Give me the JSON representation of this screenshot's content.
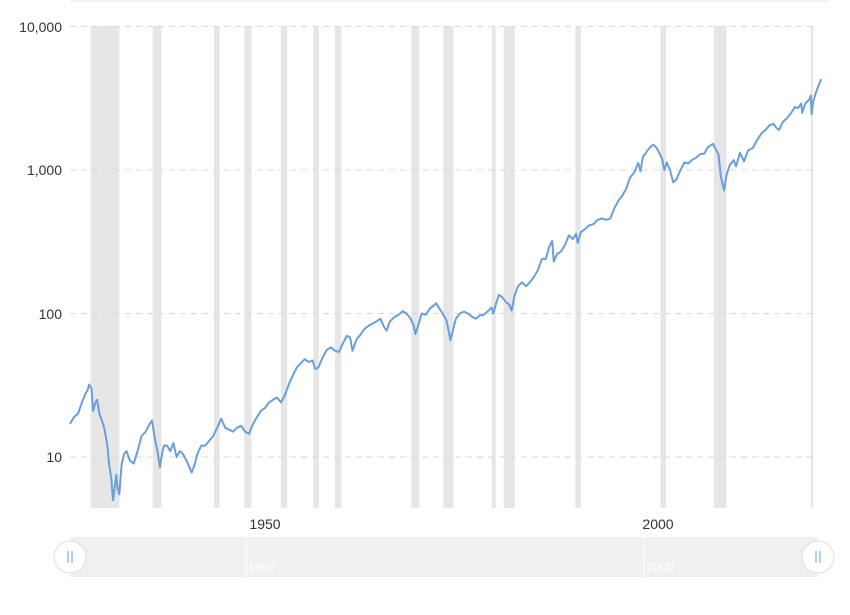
{
  "colors": {
    "line": "#6a9fd8",
    "recession_band": "#e6e6e6",
    "grid": "#d9d9d9",
    "navigator_bg": "#f0f0f0",
    "handle": "#ffffff"
  },
  "chart_data": {
    "type": "line",
    "title": "",
    "xlabel": "",
    "ylabel": "",
    "scale": "log",
    "grid": true,
    "xlim": [
      1927,
      2021
    ],
    "ylim": [
      5,
      10000
    ],
    "y_ticks": [
      {
        "value": 10,
        "label": "10"
      },
      {
        "value": 100,
        "label": "100"
      },
      {
        "value": 1000,
        "label": "1,000"
      },
      {
        "value": 10000,
        "label": "10,000"
      }
    ],
    "x_ticks": [
      {
        "value": 1950,
        "label": "1950"
      },
      {
        "value": 2000,
        "label": "2000"
      }
    ],
    "recessions": [
      [
        1929.6,
        1933.2
      ],
      [
        1937.4,
        1938.5
      ],
      [
        1945.1,
        1945.8
      ],
      [
        1948.9,
        1949.8
      ],
      [
        1953.5,
        1954.3
      ],
      [
        1957.6,
        1958.3
      ],
      [
        1960.3,
        1961.1
      ],
      [
        1969.9,
        1970.9
      ],
      [
        1973.9,
        1975.2
      ],
      [
        1980.0,
        1980.5
      ],
      [
        1981.5,
        1982.9
      ],
      [
        1990.5,
        1991.2
      ],
      [
        2001.2,
        2001.9
      ],
      [
        2007.9,
        2009.5
      ],
      [
        2020.1,
        2020.4
      ]
    ],
    "series": [
      {
        "values": [
          [
            1927.0,
            17
          ],
          [
            1927.5,
            19
          ],
          [
            1928.0,
            20
          ],
          [
            1928.5,
            24
          ],
          [
            1929.0,
            28
          ],
          [
            1929.2,
            29
          ],
          [
            1929.4,
            32
          ],
          [
            1929.7,
            30
          ],
          [
            1929.9,
            21
          ],
          [
            1930.2,
            24
          ],
          [
            1930.4,
            25
          ],
          [
            1930.7,
            20
          ],
          [
            1931.0,
            18
          ],
          [
            1931.3,
            16
          ],
          [
            1931.7,
            12
          ],
          [
            1931.9,
            9
          ],
          [
            1932.2,
            7
          ],
          [
            1932.4,
            5
          ],
          [
            1932.6,
            6
          ],
          [
            1932.8,
            7.5
          ],
          [
            1933.0,
            6
          ],
          [
            1933.2,
            5.5
          ],
          [
            1933.5,
            9
          ],
          [
            1933.8,
            10.5
          ],
          [
            1934.1,
            11
          ],
          [
            1934.5,
            9.5
          ],
          [
            1935.0,
            9
          ],
          [
            1935.5,
            11
          ],
          [
            1936.0,
            14
          ],
          [
            1936.5,
            15
          ],
          [
            1937.0,
            17
          ],
          [
            1937.3,
            18
          ],
          [
            1937.7,
            13
          ],
          [
            1938.0,
            11
          ],
          [
            1938.3,
            8.5
          ],
          [
            1938.5,
            10
          ],
          [
            1938.8,
            12
          ],
          [
            1939.2,
            12
          ],
          [
            1939.6,
            11
          ],
          [
            1940.0,
            12.5
          ],
          [
            1940.4,
            10
          ],
          [
            1940.8,
            11
          ],
          [
            1941.2,
            10.5
          ],
          [
            1941.6,
            9.5
          ],
          [
            1942.0,
            8.5
          ],
          [
            1942.3,
            7.8
          ],
          [
            1942.7,
            9
          ],
          [
            1943.0,
            10.5
          ],
          [
            1943.5,
            12
          ],
          [
            1944.0,
            12
          ],
          [
            1944.5,
            13
          ],
          [
            1945.0,
            14
          ],
          [
            1945.5,
            16
          ],
          [
            1946.0,
            18.5
          ],
          [
            1946.5,
            16
          ],
          [
            1947.0,
            15.5
          ],
          [
            1947.5,
            15
          ],
          [
            1948.0,
            16
          ],
          [
            1948.5,
            16.5
          ],
          [
            1949.0,
            15
          ],
          [
            1949.5,
            14.5
          ],
          [
            1950.0,
            17
          ],
          [
            1950.5,
            19
          ],
          [
            1951.0,
            21
          ],
          [
            1951.5,
            22
          ],
          [
            1952.0,
            24
          ],
          [
            1952.5,
            25
          ],
          [
            1953.0,
            26
          ],
          [
            1953.5,
            24
          ],
          [
            1954.0,
            27
          ],
          [
            1954.5,
            32
          ],
          [
            1955.0,
            37
          ],
          [
            1955.5,
            42
          ],
          [
            1956.0,
            45
          ],
          [
            1956.5,
            48
          ],
          [
            1957.0,
            46
          ],
          [
            1957.5,
            47
          ],
          [
            1957.8,
            41
          ],
          [
            1958.2,
            42
          ],
          [
            1958.8,
            50
          ],
          [
            1959.3,
            56
          ],
          [
            1959.8,
            58
          ],
          [
            1960.3,
            55
          ],
          [
            1960.8,
            54
          ],
          [
            1961.3,
            62
          ],
          [
            1961.8,
            70
          ],
          [
            1962.2,
            68
          ],
          [
            1962.5,
            55
          ],
          [
            1963.0,
            66
          ],
          [
            1963.5,
            71
          ],
          [
            1964.0,
            78
          ],
          [
            1964.5,
            82
          ],
          [
            1965.0,
            85
          ],
          [
            1965.5,
            88
          ],
          [
            1966.0,
            92
          ],
          [
            1966.5,
            80
          ],
          [
            1966.8,
            76
          ],
          [
            1967.2,
            88
          ],
          [
            1967.8,
            95
          ],
          [
            1968.3,
            98
          ],
          [
            1968.8,
            104
          ],
          [
            1969.3,
            100
          ],
          [
            1969.8,
            92
          ],
          [
            1970.2,
            82
          ],
          [
            1970.4,
            72
          ],
          [
            1970.8,
            84
          ],
          [
            1971.2,
            100
          ],
          [
            1971.7,
            98
          ],
          [
            1972.2,
            108
          ],
          [
            1972.8,
            115
          ],
          [
            1973.0,
            118
          ],
          [
            1973.5,
            107
          ],
          [
            1973.9,
            98
          ],
          [
            1974.3,
            90
          ],
          [
            1974.6,
            75
          ],
          [
            1974.8,
            65
          ],
          [
            1975.0,
            72
          ],
          [
            1975.5,
            92
          ],
          [
            1976.0,
            100
          ],
          [
            1976.5,
            103
          ],
          [
            1977.0,
            100
          ],
          [
            1977.5,
            95
          ],
          [
            1978.0,
            92
          ],
          [
            1978.5,
            97
          ],
          [
            1979.0,
            98
          ],
          [
            1979.5,
            104
          ],
          [
            1980.0,
            110
          ],
          [
            1980.2,
            100
          ],
          [
            1980.5,
            115
          ],
          [
            1980.9,
            135
          ],
          [
            1981.3,
            130
          ],
          [
            1981.8,
            120
          ],
          [
            1982.2,
            115
          ],
          [
            1982.5,
            105
          ],
          [
            1982.9,
            135
          ],
          [
            1983.3,
            155
          ],
          [
            1983.8,
            165
          ],
          [
            1984.3,
            155
          ],
          [
            1984.8,
            165
          ],
          [
            1985.3,
            180
          ],
          [
            1985.8,
            200
          ],
          [
            1986.3,
            240
          ],
          [
            1986.8,
            240
          ],
          [
            1987.2,
            290
          ],
          [
            1987.6,
            320
          ],
          [
            1987.8,
            230
          ],
          [
            1988.2,
            260
          ],
          [
            1988.7,
            270
          ],
          [
            1989.2,
            300
          ],
          [
            1989.7,
            350
          ],
          [
            1990.2,
            330
          ],
          [
            1990.6,
            360
          ],
          [
            1990.8,
            310
          ],
          [
            1991.2,
            370
          ],
          [
            1991.8,
            390
          ],
          [
            1992.2,
            410
          ],
          [
            1992.8,
            420
          ],
          [
            1993.3,
            450
          ],
          [
            1993.9,
            460
          ],
          [
            1994.4,
            450
          ],
          [
            1994.9,
            460
          ],
          [
            1995.4,
            540
          ],
          [
            1995.9,
            610
          ],
          [
            1996.4,
            660
          ],
          [
            1996.9,
            740
          ],
          [
            1997.4,
            890
          ],
          [
            1997.9,
            960
          ],
          [
            1998.4,
            1120
          ],
          [
            1998.7,
            980
          ],
          [
            1999.0,
            1230
          ],
          [
            1999.5,
            1350
          ],
          [
            2000.0,
            1460
          ],
          [
            2000.3,
            1500
          ],
          [
            2000.7,
            1430
          ],
          [
            2001.0,
            1330
          ],
          [
            2001.4,
            1200
          ],
          [
            2001.7,
            1000
          ],
          [
            2002.0,
            1130
          ],
          [
            2002.4,
            1000
          ],
          [
            2002.8,
            820
          ],
          [
            2003.2,
            860
          ],
          [
            2003.7,
            990
          ],
          [
            2004.2,
            1130
          ],
          [
            2004.7,
            1110
          ],
          [
            2005.2,
            1180
          ],
          [
            2005.7,
            1220
          ],
          [
            2006.2,
            1290
          ],
          [
            2006.7,
            1300
          ],
          [
            2007.2,
            1450
          ],
          [
            2007.8,
            1520
          ],
          [
            2008.2,
            1380
          ],
          [
            2008.5,
            1280
          ],
          [
            2008.8,
            900
          ],
          [
            2009.0,
            800
          ],
          [
            2009.2,
            720
          ],
          [
            2009.5,
            920
          ],
          [
            2009.9,
            1080
          ],
          [
            2010.4,
            1170
          ],
          [
            2010.7,
            1060
          ],
          [
            2011.2,
            1320
          ],
          [
            2011.7,
            1150
          ],
          [
            2012.2,
            1370
          ],
          [
            2012.8,
            1420
          ],
          [
            2013.3,
            1600
          ],
          [
            2013.9,
            1800
          ],
          [
            2014.4,
            1900
          ],
          [
            2014.9,
            2050
          ],
          [
            2015.4,
            2100
          ],
          [
            2015.8,
            1960
          ],
          [
            2016.1,
            1900
          ],
          [
            2016.6,
            2170
          ],
          [
            2017.1,
            2300
          ],
          [
            2017.6,
            2480
          ],
          [
            2018.1,
            2750
          ],
          [
            2018.5,
            2700
          ],
          [
            2018.9,
            2900
          ],
          [
            2019.0,
            2500
          ],
          [
            2019.4,
            2900
          ],
          [
            2019.9,
            3100
          ],
          [
            2020.1,
            3300
          ],
          [
            2020.2,
            2450
          ],
          [
            2020.4,
            3000
          ],
          [
            2020.7,
            3400
          ],
          [
            2021.0,
            3800
          ],
          [
            2021.4,
            4300
          ]
        ]
      }
    ]
  },
  "navigator": {
    "labels": [
      "1950",
      "2000"
    ]
  }
}
